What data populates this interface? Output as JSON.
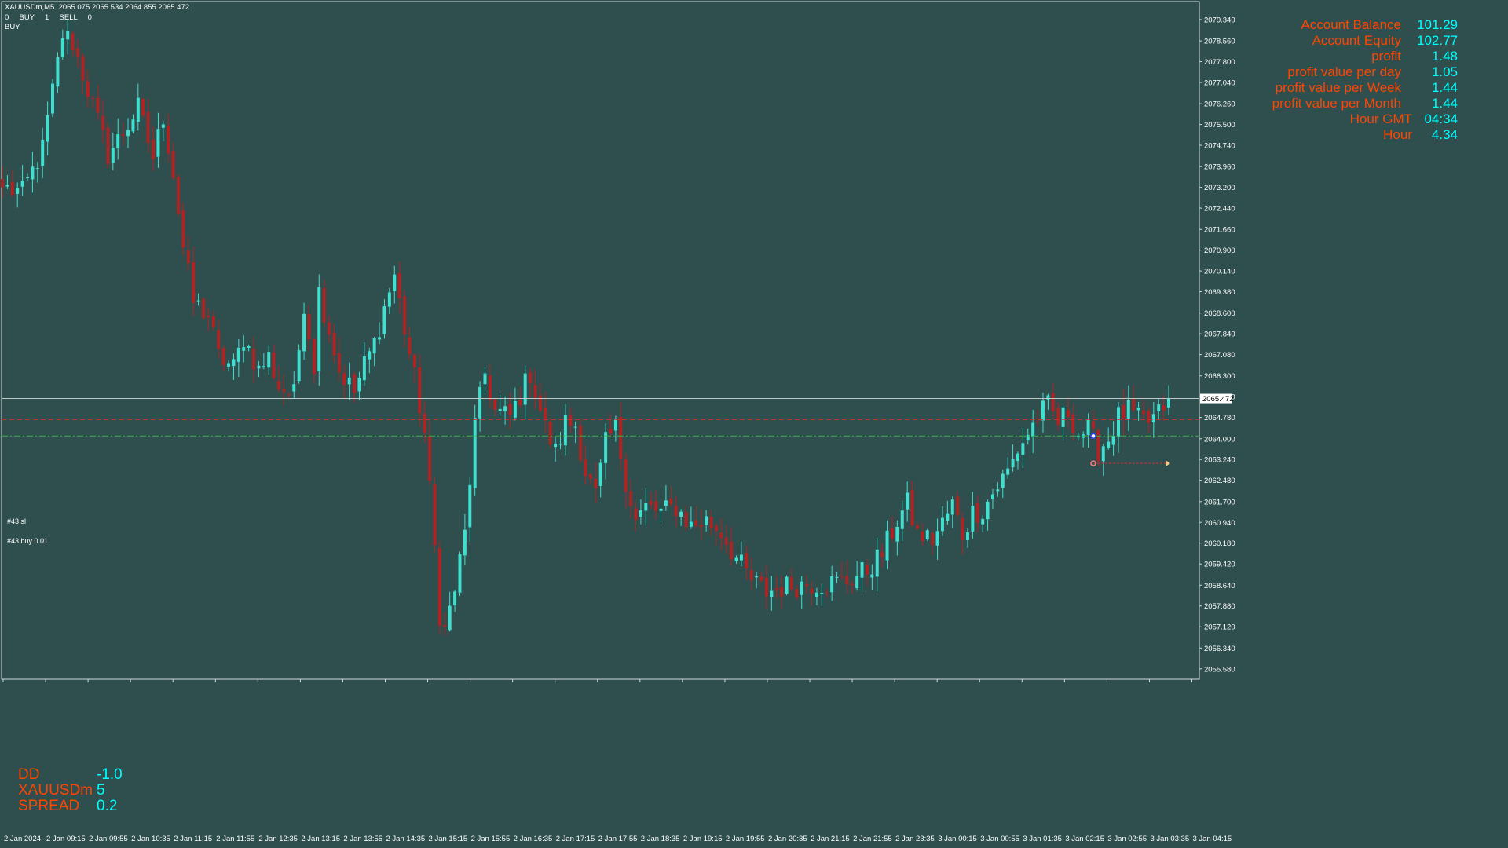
{
  "header": {
    "symbol_line": "XAUUSDm,M5  2065.075 2065.534 2064.855 2065.472",
    "orders_line": "0     BUY     1     SELL     0",
    "mode": "BUY"
  },
  "info_panel": [
    {
      "label": "Account Balance",
      "value": "101.29"
    },
    {
      "label": "Account Equity",
      "value": "102.77"
    },
    {
      "label": "profit",
      "value": "1.48"
    },
    {
      "label": "profit value per day",
      "value": "1.05"
    },
    {
      "label": "profit value per Week",
      "value": "1.44"
    },
    {
      "label": "profit value per Month",
      "value": "1.44"
    },
    {
      "label": "Hour GMT",
      "value": "04:34"
    },
    {
      "label": "Hour",
      "value": "4.34"
    }
  ],
  "dd_panel": [
    {
      "label": "DD",
      "value": "-1.0"
    },
    {
      "label": "XAUUSDm",
      "value": "5"
    },
    {
      "label": "SPREAD",
      "value": "0.2"
    }
  ],
  "lines": {
    "sl_label": "#43 sl",
    "buy_label": "#43 buy 0.01"
  },
  "colors": {
    "background": "#2f4f4f",
    "bull": "#40e0d0",
    "bear": "#b22222",
    "label": "#ff4500",
    "value": "#00ffff"
  },
  "chart_data": {
    "type": "candlestick",
    "symbol": "XAUUSDm",
    "timeframe": "M5",
    "current_price": 2065.472,
    "current_price_label": "2065.472",
    "ylim": [
      2055.2,
      2080.0
    ],
    "y_ticks": [
      "2079.340",
      "2078.560",
      "2077.800",
      "2077.040",
      "2076.260",
      "2075.500",
      "2074.740",
      "2073.960",
      "2073.200",
      "2072.440",
      "2071.660",
      "2070.900",
      "2070.140",
      "2069.380",
      "2068.600",
      "2067.840",
      "2067.080",
      "2066.300",
      "2065.540",
      "2064.780",
      "2064.000",
      "2063.240",
      "2062.480",
      "2061.700",
      "2060.940",
      "2060.180",
      "2059.420",
      "2058.640",
      "2057.880",
      "2057.120",
      "2056.340",
      "2055.580"
    ],
    "x_ticks": [
      "2 Jan 2024",
      "2 Jan 09:15",
      "2 Jan 09:55",
      "2 Jan 10:35",
      "2 Jan 11:15",
      "2 Jan 11:55",
      "2 Jan 12:35",
      "2 Jan 13:15",
      "2 Jan 13:55",
      "2 Jan 14:35",
      "2 Jan 15:15",
      "2 Jan 15:55",
      "2 Jan 16:35",
      "2 Jan 17:15",
      "2 Jan 17:55",
      "2 Jan 18:35",
      "2 Jan 19:15",
      "2 Jan 19:55",
      "2 Jan 20:35",
      "2 Jan 21:15",
      "2 Jan 21:55",
      "2 Jan 23:35",
      "3 Jan 00:15",
      "3 Jan 00:55",
      "3 Jan 01:35",
      "3 Jan 02:15",
      "3 Jan 02:55",
      "3 Jan 03:35",
      "3 Jan 04:15"
    ],
    "sl_level": 2064.7,
    "buy_level": 2064.1,
    "order_marker": {
      "x_index": 217,
      "price": 2063.1
    },
    "key_points": [
      [
        0,
        2073.2
      ],
      [
        4,
        2073.0
      ],
      [
        8,
        2074.6
      ],
      [
        12,
        2078.8
      ],
      [
        14,
        2078.5
      ],
      [
        18,
        2076.2
      ],
      [
        21,
        2074.4
      ],
      [
        24,
        2075.2
      ],
      [
        27,
        2076.1
      ],
      [
        30,
        2074.3
      ],
      [
        32,
        2075.8
      ],
      [
        34,
        2073.7
      ],
      [
        36,
        2071.0
      ],
      [
        38,
        2069.0
      ],
      [
        41,
        2068.5
      ],
      [
        43,
        2067.0
      ],
      [
        46,
        2066.6
      ],
      [
        48,
        2067.7
      ],
      [
        51,
        2066.5
      ],
      [
        53,
        2067.0
      ],
      [
        55,
        2065.9
      ],
      [
        58,
        2065.6
      ],
      [
        60,
        2069.0
      ],
      [
        62,
        2066.7
      ],
      [
        63,
        2069.4
      ],
      [
        65,
        2068.0
      ],
      [
        67,
        2066.5
      ],
      [
        70,
        2065.7
      ],
      [
        72,
        2066.7
      ],
      [
        74,
        2067.5
      ],
      [
        76,
        2068.8
      ],
      [
        78,
        2070.0
      ],
      [
        80,
        2068.0
      ],
      [
        82,
        2066.2
      ],
      [
        84,
        2064.2
      ],
      [
        86,
        2060.0
      ],
      [
        87,
        2057.6
      ],
      [
        88,
        2057.0
      ],
      [
        90,
        2058.5
      ],
      [
        92,
        2060.5
      ],
      [
        94,
        2064.5
      ],
      [
        96,
        2066.4
      ],
      [
        98,
        2065.0
      ],
      [
        101,
        2064.8
      ],
      [
        103,
        2065.6
      ],
      [
        105,
        2066.4
      ],
      [
        108,
        2064.4
      ],
      [
        110,
        2063.5
      ],
      [
        112,
        2064.6
      ],
      [
        114,
        2064.5
      ],
      [
        116,
        2062.8
      ],
      [
        118,
        2061.9
      ],
      [
        120,
        2063.8
      ],
      [
        122,
        2064.4
      ],
      [
        124,
        2062.5
      ],
      [
        126,
        2061.0
      ],
      [
        128,
        2061.5
      ],
      [
        131,
        2061.3
      ],
      [
        134,
        2061.5
      ],
      [
        137,
        2060.8
      ],
      [
        140,
        2061.0
      ],
      [
        143,
        2060.6
      ],
      [
        146,
        2059.6
      ],
      [
        149,
        2058.8
      ],
      [
        152,
        2058.4
      ],
      [
        156,
        2058.6
      ],
      [
        160,
        2058.7
      ],
      [
        164,
        2058.7
      ],
      [
        168,
        2058.8
      ],
      [
        172,
        2059.2
      ],
      [
        175,
        2059.8
      ],
      [
        178,
        2061.0
      ],
      [
        180,
        2061.6
      ],
      [
        182,
        2060.5
      ],
      [
        185,
        2060.3
      ],
      [
        187,
        2060.9
      ],
      [
        189,
        2061.6
      ],
      [
        191,
        2060.5
      ],
      [
        193,
        2061.3
      ],
      [
        195,
        2061.4
      ],
      [
        197,
        2062.0
      ],
      [
        200,
        2062.8
      ],
      [
        202,
        2063.6
      ],
      [
        204,
        2064.2
      ],
      [
        206,
        2064.8
      ],
      [
        208,
        2065.2
      ],
      [
        210,
        2064.6
      ],
      [
        212,
        2065.0
      ],
      [
        214,
        2064.2
      ],
      [
        216,
        2064.3
      ],
      [
        218,
        2063.6
      ],
      [
        220,
        2064.0
      ],
      [
        222,
        2064.8
      ],
      [
        224,
        2065.0
      ],
      [
        226,
        2064.7
      ],
      [
        228,
        2064.6
      ],
      [
        230,
        2064.9
      ],
      [
        232,
        2065.5
      ]
    ]
  }
}
